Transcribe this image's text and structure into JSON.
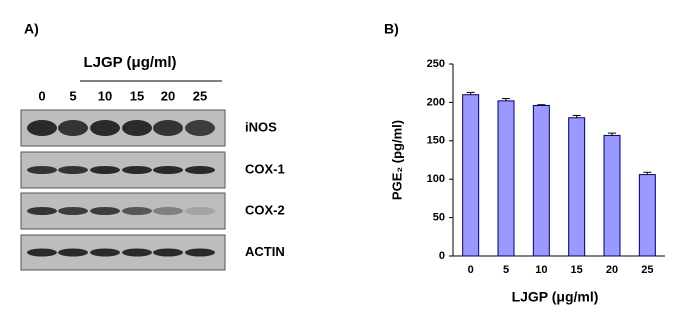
{
  "panel_a": {
    "label": "A)",
    "title": "LJGP (μg/ml)",
    "lanes": [
      "0",
      "5",
      "10",
      "15",
      "20",
      "25"
    ],
    "blots": [
      "iNOS",
      "COX-1",
      "COX-2",
      "ACTIN"
    ]
  },
  "chart_data": {
    "type": "bar",
    "panel_label": "B)",
    "x_label": "LJGP (μg/ml)",
    "y_label": "PGE₂ (pg/ml)",
    "categories": [
      "0",
      "5",
      "10",
      "15",
      "20",
      "25"
    ],
    "values": [
      210,
      202,
      196,
      180,
      157,
      106
    ],
    "errors": [
      3,
      3,
      1,
      3,
      3,
      3
    ],
    "color": "#9999ff",
    "ylim": [
      0,
      250
    ],
    "yticks": [
      0,
      50,
      100,
      150,
      200,
      250
    ]
  }
}
